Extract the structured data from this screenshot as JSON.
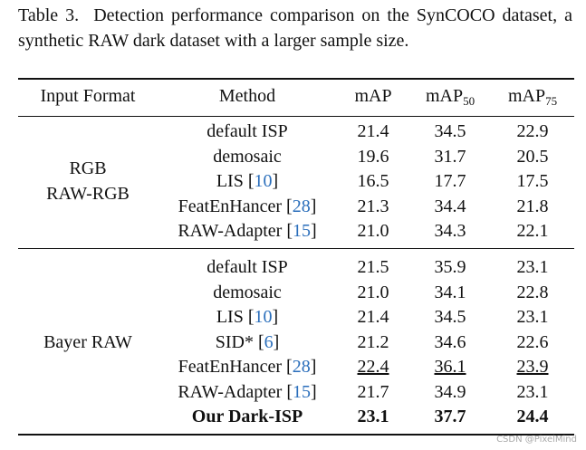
{
  "caption": {
    "label": "Table 3.",
    "text": "Detection performance comparison on the SynCOCO dataset, a synthetic RAW dark dataset with a larger sample size."
  },
  "table": {
    "header": [
      {
        "text": "Input Format"
      },
      {
        "text": "Method"
      },
      {
        "text": "mAP"
      },
      {
        "text": "mAP",
        "sub": "50"
      },
      {
        "text": "mAP",
        "sub": "75"
      }
    ],
    "groups": [
      {
        "label": [
          "RGB",
          "RAW-RGB"
        ],
        "rows": [
          {
            "method": "default ISP",
            "scores": [
              "21.4",
              "34.5",
              "22.9"
            ]
          },
          {
            "method": "demosaic",
            "scores": [
              "19.6",
              "31.7",
              "20.5"
            ]
          },
          {
            "method": {
              "pre": "LIS [",
              "cite": "10",
              "post": "]"
            },
            "scores": [
              "16.5",
              "17.7",
              "17.5"
            ]
          },
          {
            "method": {
              "pre": "FeatEnHancer [",
              "cite": "28",
              "post": "]"
            },
            "scores": [
              "21.3",
              "34.4",
              "21.8"
            ]
          },
          {
            "method": {
              "pre": "RAW-Adapter [",
              "cite": "15",
              "post": "]"
            },
            "scores": [
              "21.0",
              "34.3",
              "22.1"
            ]
          }
        ]
      },
      {
        "label": [
          "Bayer RAW"
        ],
        "rows": [
          {
            "method": "default ISP",
            "scores": [
              "21.5",
              "35.9",
              "23.1"
            ]
          },
          {
            "method": "demosaic",
            "scores": [
              "21.0",
              "34.1",
              "22.8"
            ]
          },
          {
            "method": {
              "pre": "LIS [",
              "cite": "10",
              "post": "]"
            },
            "scores": [
              "21.4",
              "34.5",
              "23.1"
            ]
          },
          {
            "method": {
              "pre": "SID* [",
              "cite": "6",
              "post": "]"
            },
            "scores": [
              "21.2",
              "34.6",
              "22.6"
            ]
          },
          {
            "method": {
              "pre": "FeatEnHancer [",
              "cite": "28",
              "post": "]"
            },
            "scores": [
              "22.4",
              "36.1",
              "23.9"
            ],
            "underline": true
          },
          {
            "method": {
              "pre": "RAW-Adapter [",
              "cite": "15",
              "post": "]"
            },
            "scores": [
              "21.7",
              "34.9",
              "23.1"
            ]
          },
          {
            "method": "Our Dark-ISP",
            "scores": [
              "23.1",
              "37.7",
              "24.4"
            ],
            "bold": true
          }
        ]
      }
    ]
  },
  "watermark": "CSDN @PixelMind"
}
